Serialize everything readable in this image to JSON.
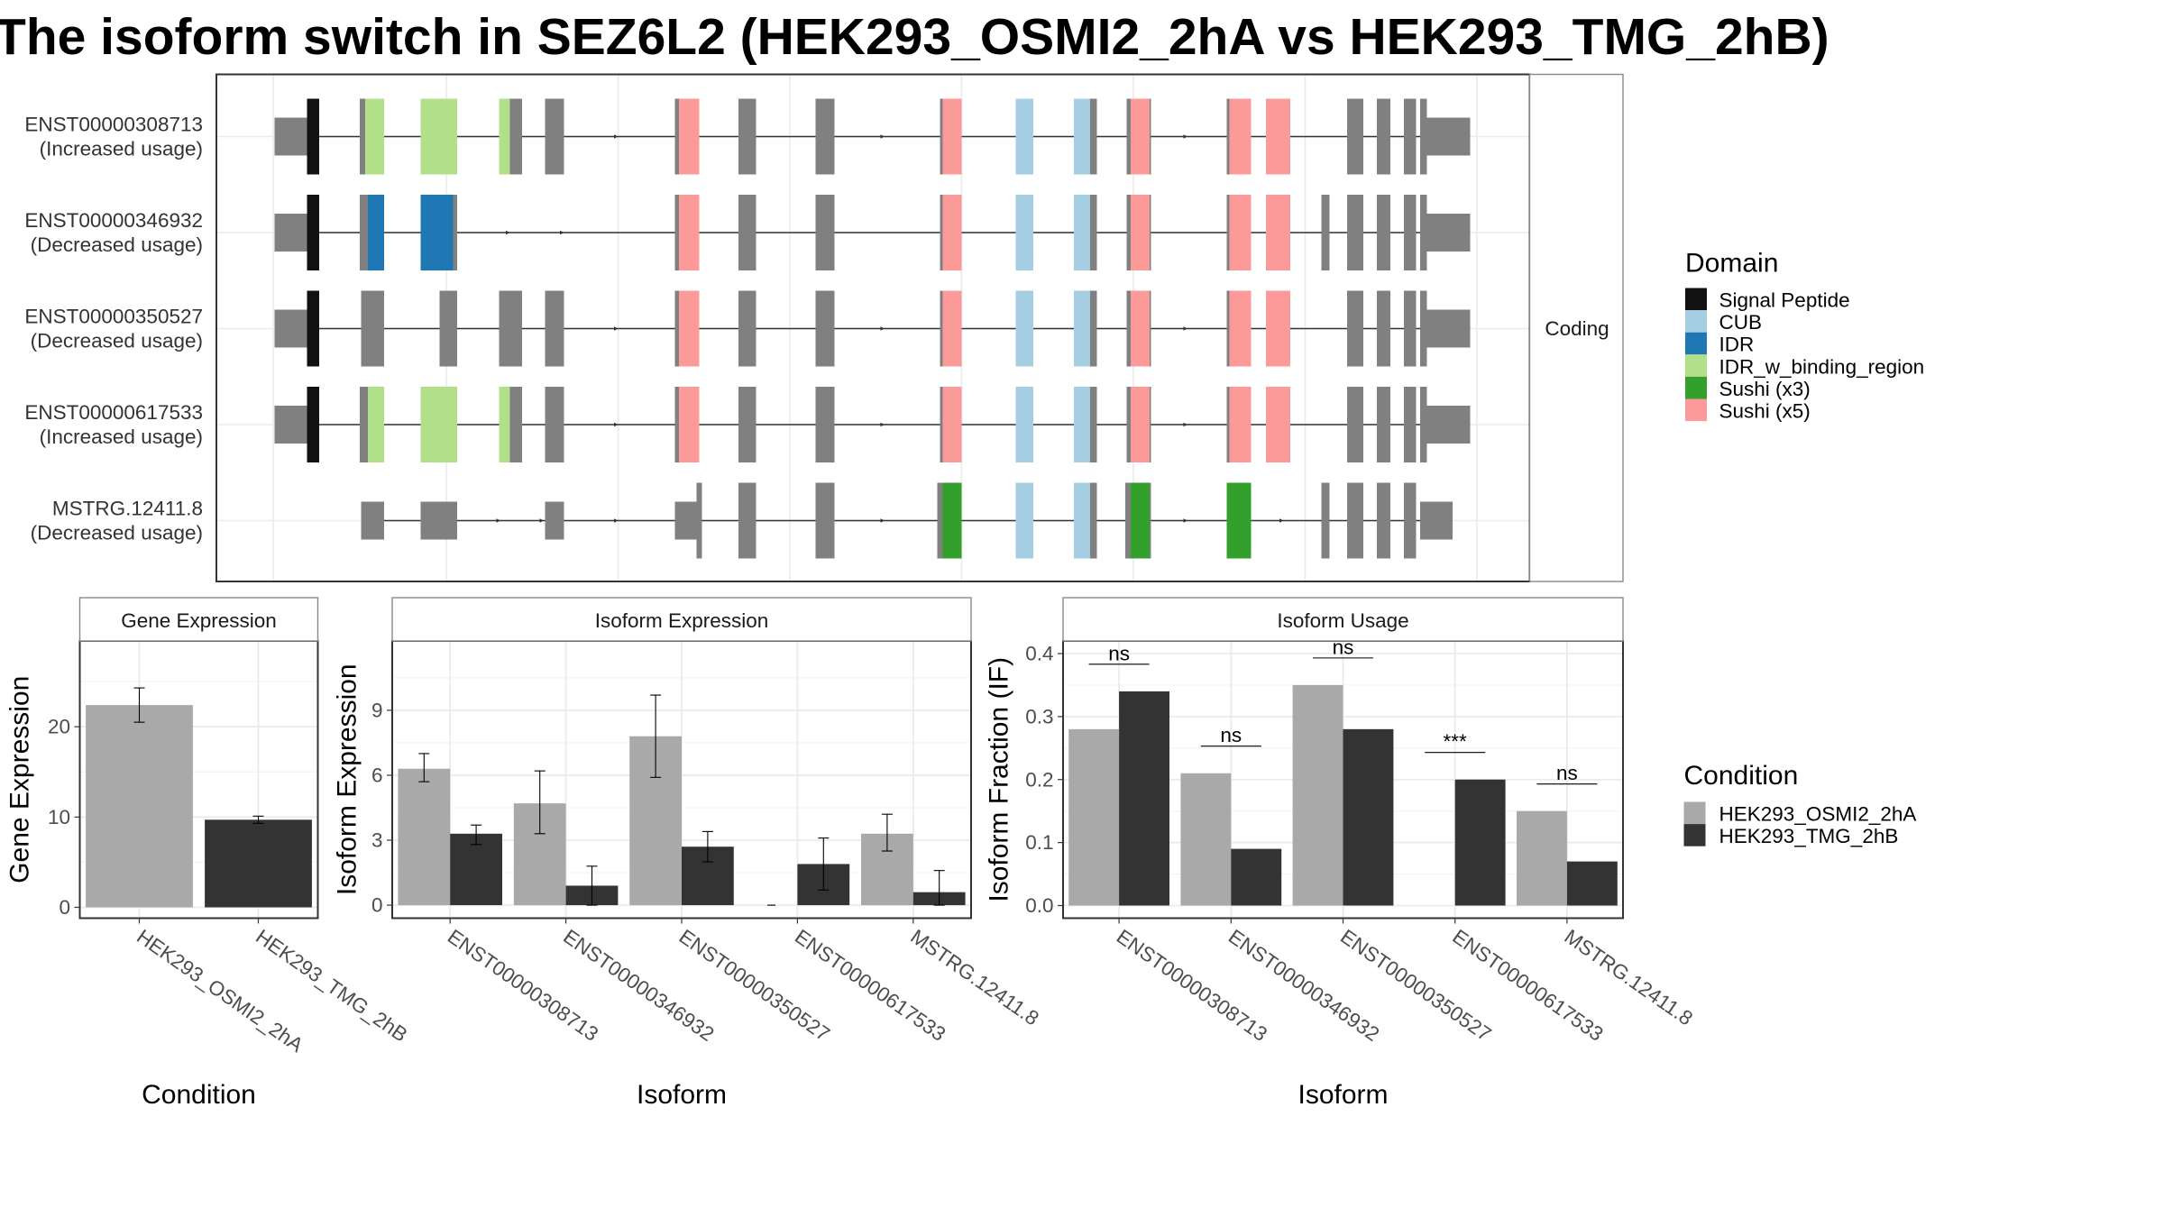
{
  "title": "The isoform switch in SEZ6L2 (HEK293_OSMI2_2hA vs HEK293_TMG_2hB)",
  "domain_colors": {
    "Signal Peptide": "#111111",
    "CUB": "#a6cee3",
    "IDR": "#1f78b4",
    "IDR_w_binding_region": "#b2df8a",
    "Sushi (x3)": "#33a02c",
    "Sushi (x5)": "#fb9a99"
  },
  "condition_colors": {
    "HEK293_OSMI2_2hA": "#a9a9a9",
    "HEK293_TMG_2hB": "#333333"
  },
  "chart_data": [
    {
      "type": "gene_structure",
      "facet": "Coding",
      "transcripts": [
        {
          "id": "ENST00000308713",
          "usage": "(Increased usage)"
        },
        {
          "id": "ENST00000346932",
          "usage": "(Decreased usage)"
        },
        {
          "id": "ENST00000350527",
          "usage": "(Decreased usage)"
        },
        {
          "id": "ENST00000617533",
          "usage": "(Increased usage)"
        },
        {
          "id": "MSTRG.12411.8",
          "usage": "(Decreased usage)"
        }
      ],
      "legend_title": "Domain",
      "legend": [
        "Signal Peptide",
        "CUB",
        "IDR",
        "IDR_w_binding_region",
        "Sushi (x3)",
        "Sushi (x5)"
      ]
    },
    {
      "type": "bar",
      "panel": "Gene Expression",
      "xlabel": "Condition",
      "ylabel": "Gene Expression",
      "categories": [
        "HEK293_OSMI2_2hA",
        "HEK293_TMG_2hB"
      ],
      "values": [
        22.4,
        9.7
      ],
      "err_low": [
        20.5,
        9.3
      ],
      "err_high": [
        24.3,
        10.1
      ],
      "ylim": [
        -1.2,
        29.5
      ],
      "yticks": [
        0,
        10,
        20
      ]
    },
    {
      "type": "bar",
      "panel": "Isoform Expression",
      "xlabel": "Isoform",
      "ylabel": "Isoform Expression",
      "categories": [
        "ENST00000308713",
        "ENST00000346932",
        "ENST00000350527",
        "ENST00000617533",
        "MSTRG.12411.8"
      ],
      "series": [
        {
          "name": "HEK293_OSMI2_2hA",
          "values": [
            6.3,
            4.7,
            7.8,
            0.0,
            3.3
          ],
          "err_low": [
            5.7,
            3.3,
            5.9,
            0.0,
            2.5
          ],
          "err_high": [
            7.0,
            6.2,
            9.7,
            0.0,
            4.2
          ]
        },
        {
          "name": "HEK293_TMG_2hB",
          "values": [
            3.3,
            0.9,
            2.7,
            1.9,
            0.6
          ],
          "err_low": [
            2.8,
            0.0,
            2.0,
            0.7,
            0.0
          ],
          "err_high": [
            3.7,
            1.8,
            3.4,
            3.1,
            1.6
          ]
        }
      ],
      "ylim": [
        -0.6,
        12.2
      ],
      "yticks": [
        0,
        3,
        6,
        9
      ]
    },
    {
      "type": "bar",
      "panel": "Isoform Usage",
      "xlabel": "Isoform",
      "ylabel": "Isoform Fraction (IF)",
      "categories": [
        "ENST00000308713",
        "ENST00000346932",
        "ENST00000350527",
        "ENST00000617533",
        "MSTRG.12411.8"
      ],
      "series": [
        {
          "name": "HEK293_OSMI2_2hA",
          "values": [
            0.28,
            0.21,
            0.35,
            0.0,
            0.15
          ]
        },
        {
          "name": "HEK293_TMG_2hB",
          "values": [
            0.34,
            0.09,
            0.28,
            0.2,
            0.07
          ]
        }
      ],
      "significance": [
        "ns",
        "ns",
        "ns",
        "***",
        "ns"
      ],
      "ylim": [
        -0.02,
        0.42
      ],
      "yticks": [
        "0.0",
        "0.1",
        "0.2",
        "0.3",
        "0.4"
      ],
      "legend_title": "Condition",
      "legend": [
        "HEK293_OSMI2_2hA",
        "HEK293_TMG_2hB"
      ]
    }
  ]
}
